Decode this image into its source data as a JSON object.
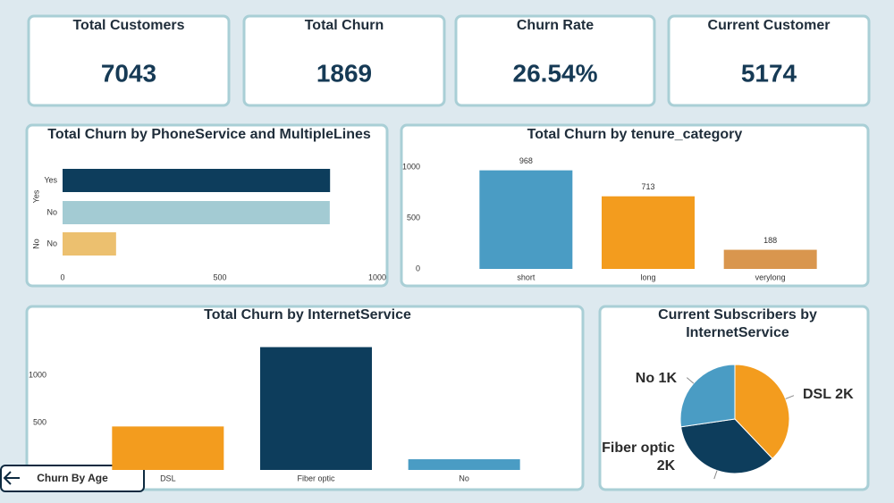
{
  "kpis": [
    {
      "title": "Total Customers",
      "value": 7043
    },
    {
      "title": "Total Churn",
      "value": 1869
    },
    {
      "title": "Churn Rate",
      "value": "26.54%"
    },
    {
      "title": "Current Customer",
      "value": 5174
    }
  ],
  "button": {
    "label": "Churn By Age"
  },
  "chart_data": [
    {
      "type": "grouped-hbar",
      "title": "Total Churn by PhoneService and MultipleLines",
      "groups": [
        {
          "name": "Yes",
          "categories": [
            "Yes",
            "No"
          ],
          "values": [
            850,
            849
          ],
          "colors": [
            "#0d3d5c",
            "#a3cbd3"
          ]
        },
        {
          "name": "No",
          "categories": [
            "No"
          ],
          "values": [
            170
          ],
          "colors": [
            "#ecc06f"
          ]
        }
      ],
      "xlim": [
        0,
        1000
      ],
      "xticks": [
        0,
        500,
        1000
      ]
    },
    {
      "type": "bar",
      "title": "Total Churn by tenure_category",
      "categories": [
        "short",
        "long",
        "verylong"
      ],
      "values": [
        968,
        713,
        188
      ],
      "colors": [
        "#4a9cc4",
        "#f39c1e",
        "#d9964e"
      ],
      "ylim": [
        0,
        1050
      ],
      "yticks": [
        0,
        500,
        1000
      ],
      "show_value_labels": true
    },
    {
      "type": "bar",
      "title": "Total Churn by InternetService",
      "categories": [
        "DSL",
        "Fiber optic",
        "No"
      ],
      "values": [
        459,
        1297,
        113
      ],
      "colors": [
        "#f39c1e",
        "#0d3d5c",
        "#4a9cc4"
      ],
      "ylim": [
        0,
        1450
      ],
      "yticks": [
        500,
        1000
      ],
      "show_value_labels": false
    },
    {
      "type": "pie",
      "title": [
        "Current Subscribers by",
        "InternetService"
      ],
      "categories": [
        "DSL",
        "Fiber optic",
        "No"
      ],
      "values": [
        1962,
        1799,
        1413
      ],
      "value_labels": [
        "2K",
        "2K",
        "1K"
      ],
      "colors": [
        "#f39c1e",
        "#0d3d5c",
        "#4a9cc4"
      ]
    }
  ]
}
